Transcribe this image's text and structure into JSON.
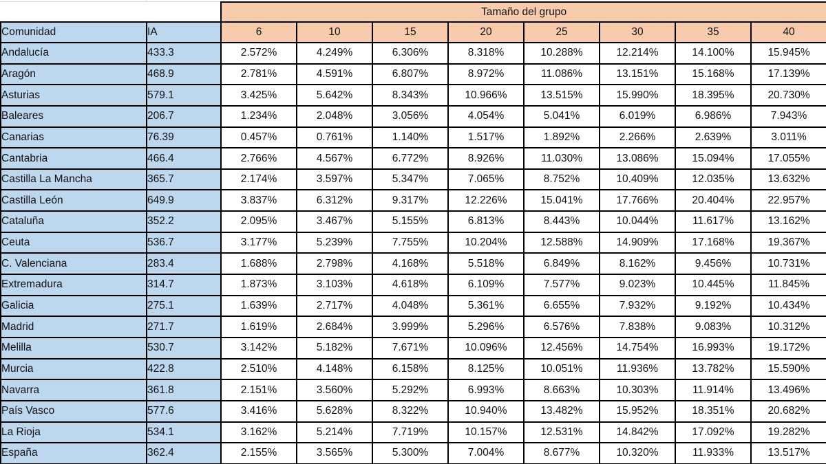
{
  "colors": {
    "header_blue": "#BDD7EE",
    "header_peach": "#F8CBAD",
    "border_black": "#000000",
    "gridline_gray": "#D6D6D6"
  },
  "chart_data": {
    "type": "table",
    "title": "Tamaño del grupo",
    "group_header": "Tamaño del grupo",
    "comunidad_header": "Comunidad",
    "ia_header": "IA",
    "size_headers": [
      "6",
      "10",
      "15",
      "20",
      "25",
      "30",
      "35",
      "40"
    ],
    "rows": [
      {
        "comunidad": "Andalucía",
        "ia": "433.3",
        "values": [
          "2.572%",
          "4.249%",
          "6.306%",
          "8.318%",
          "10.288%",
          "12.214%",
          "14.100%",
          "15.945%"
        ]
      },
      {
        "comunidad": "Aragón",
        "ia": "468.9",
        "values": [
          "2.781%",
          "4.591%",
          "6.807%",
          "8.972%",
          "11.086%",
          "13.151%",
          "15.168%",
          "17.139%"
        ]
      },
      {
        "comunidad": "Asturias",
        "ia": "579.1",
        "values": [
          "3.425%",
          "5.642%",
          "8.343%",
          "10.966%",
          "13.515%",
          "15.990%",
          "18.395%",
          "20.730%"
        ]
      },
      {
        "comunidad": "Baleares",
        "ia": "206.7",
        "values": [
          "1.234%",
          "2.048%",
          "3.056%",
          "4.054%",
          "5.041%",
          "6.019%",
          "6.986%",
          "7.943%"
        ]
      },
      {
        "comunidad": "Canarias",
        "ia": "76.39",
        "values": [
          "0.457%",
          "0.761%",
          "1.140%",
          "1.517%",
          "1.892%",
          "2.266%",
          "2.639%",
          "3.011%"
        ]
      },
      {
        "comunidad": "Cantabria",
        "ia": "466.4",
        "values": [
          "2.766%",
          "4.567%",
          "6.772%",
          "8.926%",
          "11.030%",
          "13.086%",
          "15.094%",
          "17.055%"
        ]
      },
      {
        "comunidad": "Castilla La Mancha",
        "ia": "365.7",
        "values": [
          "2.174%",
          "3.597%",
          "5.347%",
          "7.065%",
          "8.752%",
          "10.409%",
          "12.035%",
          "13.632%"
        ]
      },
      {
        "comunidad": "Castilla León",
        "ia": "649.9",
        "values": [
          "3.837%",
          "6.312%",
          "9.317%",
          "12.226%",
          "15.041%",
          "17.766%",
          "20.404%",
          "22.957%"
        ]
      },
      {
        "comunidad": "Cataluña",
        "ia": "352.2",
        "values": [
          "2.095%",
          "3.467%",
          "5.155%",
          "6.813%",
          "8.443%",
          "10.044%",
          "11.617%",
          "13.162%"
        ]
      },
      {
        "comunidad": "Ceuta",
        "ia": "536.7",
        "values": [
          "3.177%",
          "5.239%",
          "7.755%",
          "10.204%",
          "12.588%",
          "14.909%",
          "17.168%",
          "19.367%"
        ]
      },
      {
        "comunidad": "C. Valenciana",
        "ia": "283.4",
        "values": [
          "1.688%",
          "2.798%",
          "4.168%",
          "5.518%",
          "6.849%",
          "8.162%",
          "9.456%",
          "10.731%"
        ]
      },
      {
        "comunidad": "Extremadura",
        "ia": "314.7",
        "values": [
          "1.873%",
          "3.103%",
          "4.618%",
          "6.109%",
          "7.577%",
          "9.023%",
          "10.445%",
          "11.845%"
        ]
      },
      {
        "comunidad": "Galicia",
        "ia": "275.1",
        "values": [
          "1.639%",
          "2.717%",
          "4.048%",
          "5.361%",
          "6.655%",
          "7.932%",
          "9.192%",
          "10.434%"
        ]
      },
      {
        "comunidad": "Madrid",
        "ia": "271.7",
        "values": [
          "1.619%",
          "2.684%",
          "3.999%",
          "5.296%",
          "6.576%",
          "7.838%",
          "9.083%",
          "10.312%"
        ]
      },
      {
        "comunidad": "Melilla",
        "ia": "530.7",
        "values": [
          "3.142%",
          "5.182%",
          "7.671%",
          "10.096%",
          "12.456%",
          "14.754%",
          "16.993%",
          "19.172%"
        ]
      },
      {
        "comunidad": "Murcia",
        "ia": "422.8",
        "values": [
          "2.510%",
          "4.148%",
          "6.158%",
          "8.125%",
          "10.051%",
          "11.936%",
          "13.782%",
          "15.590%"
        ]
      },
      {
        "comunidad": "Navarra",
        "ia": "361.8",
        "values": [
          "2.151%",
          "3.560%",
          "5.292%",
          "6.993%",
          "8.663%",
          "10.303%",
          "11.914%",
          "13.496%"
        ]
      },
      {
        "comunidad": "País Vasco",
        "ia": "577.6",
        "values": [
          "3.416%",
          "5.628%",
          "8.322%",
          "10.940%",
          "13.482%",
          "15.952%",
          "18.351%",
          "20.682%"
        ]
      },
      {
        "comunidad": "La Rioja",
        "ia": "534.1",
        "values": [
          "3.162%",
          "5.214%",
          "7.719%",
          "10.157%",
          "12.531%",
          "14.842%",
          "17.092%",
          "19.282%"
        ]
      },
      {
        "comunidad": "España",
        "ia": "362.4",
        "values": [
          "2.155%",
          "3.565%",
          "5.300%",
          "7.004%",
          "8.677%",
          "10.320%",
          "11.933%",
          "13.517%"
        ]
      }
    ]
  }
}
